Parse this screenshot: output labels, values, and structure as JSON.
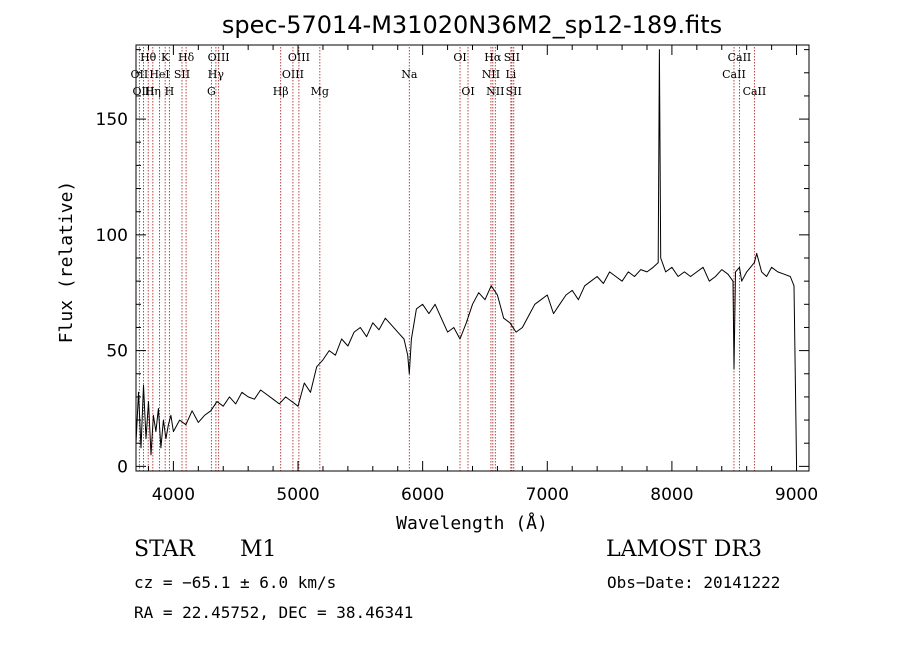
{
  "chart_data": {
    "type": "line",
    "title": "spec-57014-M31020N36M2_sp12-189.fits",
    "xlabel": "Wavelength (Å)",
    "ylabel": "Flux (relative)",
    "xlim": [
      3700,
      9100
    ],
    "ylim": [
      -2,
      182
    ],
    "xticks": [
      4000,
      5000,
      6000,
      7000,
      8000,
      9000
    ],
    "yticks": [
      0,
      50,
      100,
      150
    ],
    "grid": false,
    "line_color": "#000000",
    "marker_color": "#b03030",
    "lines": [
      {
        "label": "Hθ",
        "x": 3798,
        "row": 0
      },
      {
        "label": "OII",
        "x": 3727,
        "row": 1
      },
      {
        "label": "OIII",
        "x": 3760,
        "row": 2
      },
      {
        "label": "K",
        "x": 3934,
        "row": 0
      },
      {
        "label": "HeI",
        "x": 3889,
        "row": 1
      },
      {
        "label": "Hη",
        "x": 3835,
        "row": 2
      },
      {
        "label": "Hδ",
        "x": 4102,
        "row": 0
      },
      {
        "label": "SII",
        "x": 4069,
        "row": 1
      },
      {
        "label": "H",
        "x": 3968,
        "row": 2
      },
      {
        "label": "OIII",
        "x": 4363,
        "row": 0
      },
      {
        "label": "Hγ",
        "x": 4341,
        "row": 1
      },
      {
        "label": "G",
        "x": 4305,
        "row": 2
      },
      {
        "label": "OIII",
        "x": 5007,
        "row": 0
      },
      {
        "label": "OIII",
        "x": 4959,
        "row": 1
      },
      {
        "label": "Hβ",
        "x": 4861,
        "row": 2
      },
      {
        "label": "Mg",
        "x": 5175,
        "row": 2
      },
      {
        "label": "Na",
        "x": 5893,
        "row": 1
      },
      {
        "label": "OI",
        "x": 6300,
        "row": 0
      },
      {
        "label": "OI",
        "x": 6364,
        "row": 2
      },
      {
        "label": "Hα",
        "x": 6563,
        "row": 0
      },
      {
        "label": "NII",
        "x": 6548,
        "row": 1
      },
      {
        "label": "NII",
        "x": 6583,
        "row": 2
      },
      {
        "label": "SII",
        "x": 6716,
        "row": 0
      },
      {
        "label": "Li",
        "x": 6708,
        "row": 1
      },
      {
        "label": "SII",
        "x": 6731,
        "row": 2
      },
      {
        "label": "CaII",
        "x": 8542,
        "row": 0
      },
      {
        "label": "CaII",
        "x": 8498,
        "row": 1
      },
      {
        "label": "CaII",
        "x": 8662,
        "row": 2
      }
    ],
    "series": [
      {
        "x": [
          3700,
          3720,
          3740,
          3760,
          3780,
          3800,
          3820,
          3840,
          3860,
          3880,
          3900,
          3920,
          3940,
          3960,
          3980,
          4000,
          4050,
          4100,
          4150,
          4200,
          4250,
          4300,
          4350,
          4400,
          4450,
          4500,
          4550,
          4600,
          4650,
          4700,
          4750,
          4800,
          4850,
          4900,
          4950,
          5000,
          5050,
          5100,
          5150,
          5200,
          5250,
          5300,
          5350,
          5400,
          5450,
          5500,
          5550,
          5600,
          5650,
          5700,
          5750,
          5800,
          5850,
          5880,
          5893,
          5910,
          5950,
          6000,
          6050,
          6100,
          6150,
          6200,
          6250,
          6300,
          6350,
          6400,
          6450,
          6500,
          6550,
          6600,
          6650,
          6700,
          6750,
          6800,
          6850,
          6900,
          6950,
          7000,
          7050,
          7100,
          7150,
          7200,
          7250,
          7300,
          7350,
          7400,
          7450,
          7500,
          7550,
          7600,
          7650,
          7700,
          7750,
          7800,
          7850,
          7890,
          7900,
          7910,
          7950,
          8000,
          8050,
          8100,
          8150,
          8200,
          8250,
          8300,
          8350,
          8400,
          8450,
          8490,
          8498,
          8510,
          8542,
          8560,
          8600,
          8662,
          8680,
          8720,
          8760,
          8800,
          8850,
          8900,
          8950,
          8980,
          9000
        ],
        "values": [
          10,
          32,
          8,
          35,
          12,
          28,
          5,
          22,
          15,
          25,
          8,
          20,
          12,
          18,
          22,
          15,
          20,
          18,
          24,
          19,
          22,
          24,
          28,
          26,
          30,
          27,
          32,
          30,
          29,
          33,
          31,
          29,
          27,
          30,
          28,
          26,
          36,
          32,
          43,
          46,
          50,
          48,
          55,
          52,
          58,
          60,
          56,
          62,
          59,
          64,
          61,
          58,
          55,
          48,
          40,
          55,
          68,
          70,
          66,
          70,
          64,
          58,
          60,
          55,
          62,
          70,
          75,
          72,
          78,
          74,
          64,
          62,
          58,
          60,
          65,
          70,
          72,
          74,
          66,
          70,
          74,
          76,
          72,
          78,
          80,
          82,
          79,
          84,
          82,
          80,
          84,
          82,
          85,
          84,
          86,
          88,
          180,
          90,
          84,
          86,
          82,
          84,
          82,
          84,
          86,
          80,
          82,
          85,
          83,
          80,
          42,
          84,
          86,
          80,
          84,
          88,
          92,
          84,
          82,
          86,
          84,
          83,
          82,
          78,
          2
        ]
      }
    ]
  },
  "info": {
    "object_class": "STAR",
    "subclass": "M1",
    "survey": "LAMOST DR3",
    "cz": "cz = −65.1 ± 6.0 km/s",
    "obs_date": "Obs−Date: 20141222",
    "coords": "RA =  22.45752, DEC =  38.46341"
  }
}
